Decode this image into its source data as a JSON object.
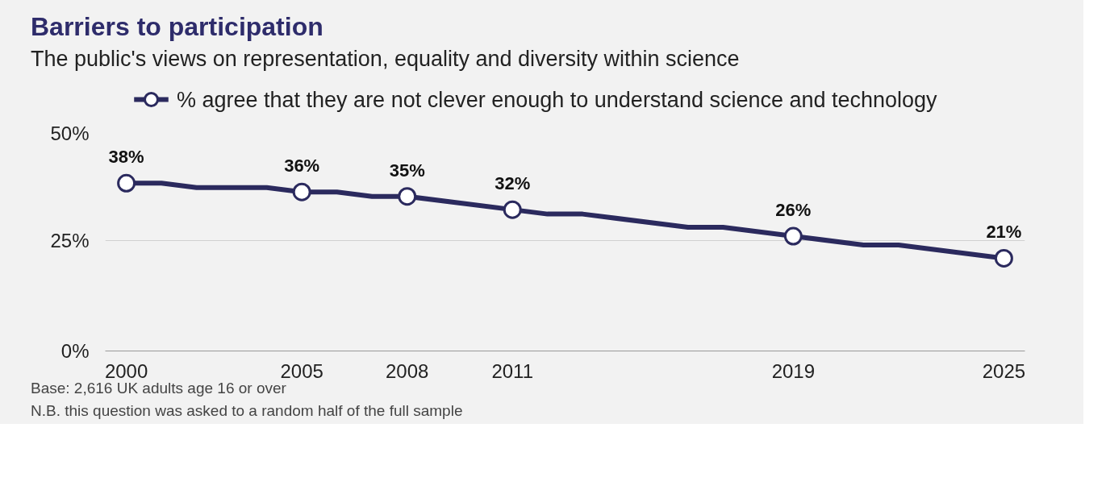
{
  "chart_data": {
    "type": "line",
    "title": "Barriers to participation",
    "subtitle": "The public's views on representation, equality and diversity within science",
    "x": [
      2000,
      2001,
      2002,
      2004,
      2005,
      2006,
      2007,
      2008,
      2011,
      2012,
      2013,
      2016,
      2017,
      2019,
      2021,
      2022,
      2025
    ],
    "series": [
      {
        "name": "% agree that they are not clever enough to understand science and technology",
        "color": "#2b2a5e",
        "values": [
          38,
          38,
          37,
          37,
          36,
          36,
          35,
          35,
          32,
          31,
          31,
          28,
          28,
          26,
          24,
          24,
          21
        ],
        "marker": "none"
      },
      {
        "type": "scatter",
        "color": "#2b2a5e",
        "marker": "circle",
        "x": [
          2000,
          2005,
          2008,
          2011,
          2019,
          2025
        ],
        "values": [
          38,
          36,
          35,
          32,
          26,
          21
        ],
        "value_labels": [
          "38%",
          "36%",
          "35%",
          "32%",
          "26%",
          "21%"
        ]
      }
    ],
    "xlim": [
      1999.4,
      2025.6
    ],
    "xticks": [
      2000,
      2005,
      2008,
      2011,
      2019,
      2025
    ],
    "ylim": [
      0,
      50
    ],
    "yticks": [
      {
        "value": 0,
        "label": "0%"
      },
      {
        "value": 25,
        "label": "25%"
      },
      {
        "value": 50,
        "label": "50%"
      }
    ],
    "grid": "y",
    "legend": "top left",
    "line_style": "solid",
    "annotations": [
      "Base: 2,616 UK adults age 16 or over",
      "N.B. this question was asked to a random half of the full sample"
    ]
  }
}
